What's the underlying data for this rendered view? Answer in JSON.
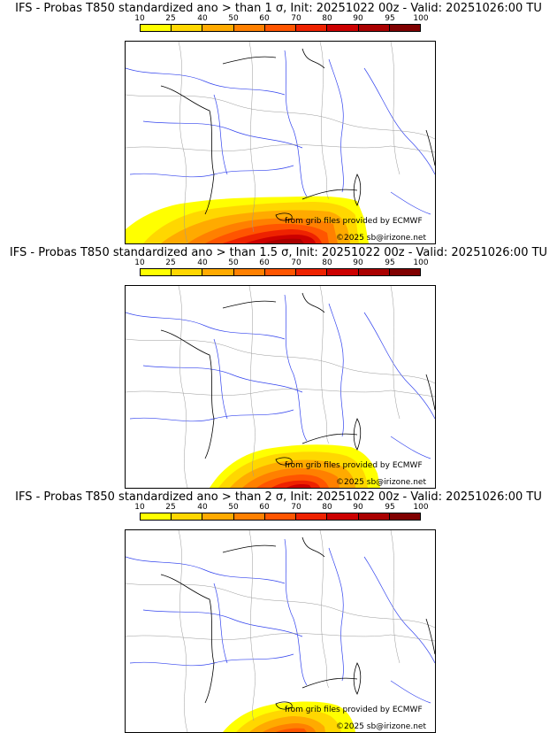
{
  "colorbar": {
    "labels": [
      "10",
      "25",
      "40",
      "50",
      "60",
      "70",
      "80",
      "90",
      "95",
      "100"
    ],
    "colors": [
      "#ffff00",
      "#ffd700",
      "#ffaa00",
      "#ff8000",
      "#ff5500",
      "#ee2200",
      "#cc0000",
      "#aa0000",
      "#800000"
    ]
  },
  "panels": [
    {
      "title": "IFS - Probas T850  standardized ano > than 1 σ, Init: 20251022 00z - Valid: 20251026:00 TU",
      "credit_source": "from grib files provided by ECMWF",
      "credit_copyright": "©2025 sb@irizone.net"
    },
    {
      "title": "IFS - Probas T850  standardized ano > than 1.5 σ, Init: 20251022 00z - Valid: 20251026:00 TU",
      "credit_source": "from grib files provided by ECMWF",
      "credit_copyright": "©2025 sb@irizone.net"
    },
    {
      "title": "IFS - Probas T850  standardized ano > than 2 σ, Init: 20251022 00z - Valid: 20251026:00 TU",
      "credit_source": "from grib files provided by ECMWF",
      "credit_copyright": "©2025 sb@irizone.net"
    }
  ]
}
